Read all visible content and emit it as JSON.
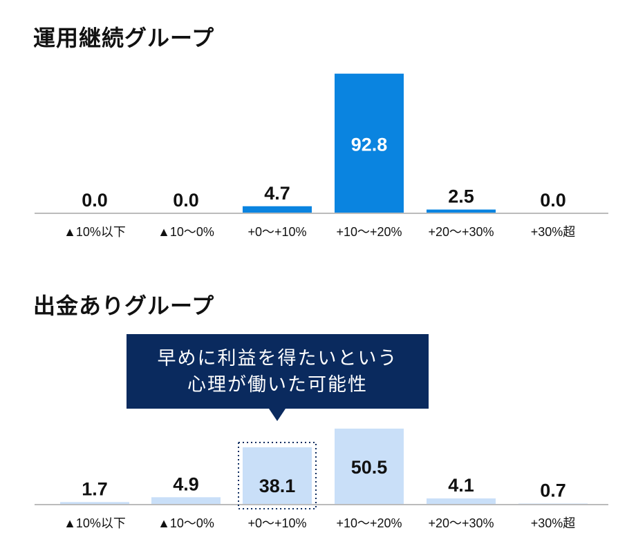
{
  "chart_data": [
    {
      "type": "bar",
      "title": "運用継続グループ",
      "categories": [
        "▲10%以下",
        "▲10～0%",
        "+0～+10%",
        "+10～+20%",
        "+20～+30%",
        "+30%超"
      ],
      "values": [
        0.0,
        0.0,
        4.7,
        92.8,
        2.5,
        0.0
      ],
      "bar_color": "#0a84e0",
      "grid": false
    },
    {
      "type": "bar",
      "title": "出金ありグループ",
      "categories": [
        "▲10%以下",
        "▲10～0%",
        "+0～+10%",
        "+10～+20%",
        "+20～+30%",
        "+30%超"
      ],
      "values": [
        1.7,
        4.9,
        38.1,
        50.5,
        4.1,
        0.7
      ],
      "bar_color": "#c9dff8",
      "grid": false,
      "annotation": {
        "lines": [
          "早めに利益を得たいという",
          "心理が働いた可能性"
        ],
        "target_category": "+0～+10%",
        "color": "#0a2a5e"
      }
    }
  ]
}
